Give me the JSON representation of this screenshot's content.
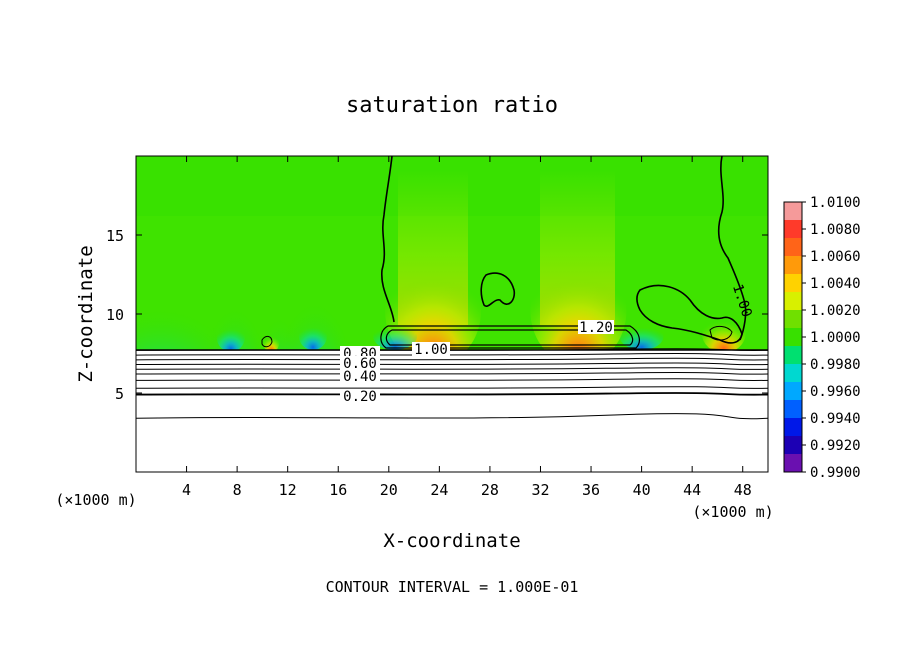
{
  "chart_data": {
    "type": "heatmap",
    "title": "saturation ratio",
    "xlabel": "X-coordinate",
    "ylabel": "Z-coordinate",
    "x_unit_label": "(×1000 m)",
    "x_unit_label_right": "(×1000 m)",
    "footer": "CONTOUR INTERVAL = 1.000E-01",
    "xlim": [
      0,
      50
    ],
    "ylim": [
      0,
      20
    ],
    "x_ticks": [
      4,
      8,
      12,
      16,
      20,
      24,
      28,
      32,
      36,
      40,
      44,
      48
    ],
    "x_tick_labels": [
      "4",
      "8",
      "12",
      "16",
      "20",
      "24",
      "28",
      "32",
      "36",
      "40",
      "44",
      "48"
    ],
    "y_ticks": [
      5,
      10,
      15
    ],
    "y_tick_labels": [
      "5",
      "10",
      "15"
    ],
    "colorbar": {
      "min": 0.99,
      "max": 1.01,
      "labels": [
        "1.0100",
        "1.0080",
        "1.0060",
        "1.0040",
        "1.0020",
        "1.0000",
        "0.9980",
        "0.9960",
        "0.9940",
        "0.9920",
        "0.9900"
      ],
      "colors": [
        "#f59a9a",
        "#ff3a2a",
        "#ff6418",
        "#ff9a0a",
        "#ffd200",
        "#d8f000",
        "#70e000",
        "#38e000",
        "#00e070",
        "#00d8d0",
        "#00a8ff",
        "#0060ff",
        "#0018e8",
        "#1c00b4",
        "#6a10b0"
      ]
    },
    "field": {
      "background_value": 0.9995,
      "cloud_base_height": 8.0,
      "hotspots": [
        {
          "x": 23.5,
          "z": 10.2,
          "value": 1.0055
        },
        {
          "x": 35.0,
          "z": 10.2,
          "value": 1.0055
        },
        {
          "x": 46.5,
          "z": 8.8,
          "value": 1.006
        },
        {
          "x": 10.7,
          "z": 8.2,
          "value": 1.006
        }
      ],
      "dry_spots": [
        {
          "x": 20.5,
          "z": 8.6,
          "value": 0.993
        },
        {
          "x": 40.0,
          "z": 8.6,
          "value": 0.993
        },
        {
          "x": 7.5,
          "z": 8.5,
          "value": 0.996
        },
        {
          "x": 14.0,
          "z": 8.6,
          "value": 0.997
        }
      ]
    },
    "contours": [
      {
        "value": 1.0,
        "label": "1.00"
      },
      {
        "value": 1.2,
        "label": "1.20"
      },
      {
        "value": 0.8,
        "label": "0.80"
      },
      {
        "value": 0.6,
        "label": "0.60"
      },
      {
        "value": 0.4,
        "label": "0.40"
      },
      {
        "value": 0.2,
        "label": "0.20"
      }
    ],
    "subcloud_contour_heights": [
      7.7,
      7.4,
      7.1,
      6.8,
      6.5,
      6.2,
      5.8,
      5.3,
      4.9,
      3.4
    ],
    "contour_label_text": {
      "c100_main": "1.00",
      "c100_right": "1.00",
      "c120": "1.20",
      "c080": "0.80",
      "c060": "0.60",
      "c040": "0.40",
      "c020": "0.20"
    }
  }
}
